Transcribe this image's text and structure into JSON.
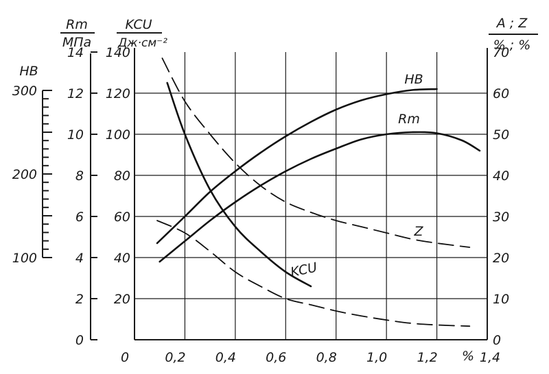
{
  "chart_data": {
    "type": "line",
    "x": {
      "unit": "%",
      "range": [
        0,
        1.4
      ],
      "ticks": [
        {
          "value": 0,
          "label": "0"
        },
        {
          "value": 0.2,
          "label": "0,2"
        },
        {
          "value": 0.4,
          "label": "0,4"
        },
        {
          "value": 0.6,
          "label": "0,6"
        },
        {
          "value": 0.8,
          "label": "0,8"
        },
        {
          "value": 1.0,
          "label": "1,0"
        },
        {
          "value": 1.2,
          "label": "1,2"
        },
        {
          "value": 1.4,
          "label": "1,4"
        }
      ]
    },
    "axes": {
      "hb": {
        "label": "HB",
        "range": [
          100,
          300
        ],
        "tick_labels": [
          {
            "value": 100,
            "label": "100"
          },
          {
            "value": 200,
            "label": "200"
          },
          {
            "value": 300,
            "label": "300"
          }
        ]
      },
      "rm": {
        "label_top": "Rm",
        "label_bottom": "МПа",
        "range": [
          0,
          14
        ],
        "tick_labels": [
          {
            "value": 0,
            "label": "0"
          },
          {
            "value": 2,
            "label": "2"
          },
          {
            "value": 4,
            "label": "4"
          },
          {
            "value": 6,
            "label": "6"
          },
          {
            "value": 8,
            "label": "8"
          },
          {
            "value": 10,
            "label": "10"
          },
          {
            "value": 12,
            "label": "12"
          },
          {
            "value": 14,
            "label": "14"
          }
        ]
      },
      "kcu": {
        "label_top": "KCU",
        "label_bottom": "Дж·см⁻²",
        "range": [
          0,
          140
        ],
        "tick_labels": [
          {
            "value": 20,
            "label": "20"
          },
          {
            "value": 40,
            "label": "40"
          },
          {
            "value": 60,
            "label": "60"
          },
          {
            "value": 80,
            "label": "80"
          },
          {
            "value": 100,
            "label": "100"
          },
          {
            "value": 120,
            "label": "120"
          },
          {
            "value": 140,
            "label": "140"
          }
        ]
      },
      "az": {
        "label_top": "A ; Z",
        "label_bottom": "% ; %",
        "range": [
          0,
          70
        ],
        "tick_labels": [
          {
            "value": 0,
            "label": "0"
          },
          {
            "value": 10,
            "label": "10"
          },
          {
            "value": 20,
            "label": "20"
          },
          {
            "value": 30,
            "label": "30"
          },
          {
            "value": 40,
            "label": "40"
          },
          {
            "value": 50,
            "label": "50"
          },
          {
            "value": 60,
            "label": "60"
          },
          {
            "value": 70,
            "label": "70"
          }
        ]
      }
    },
    "series": [
      {
        "name": "HB",
        "label": "HB",
        "axis": "rm",
        "style": "solid",
        "points": [
          [
            0.09,
            4.7
          ],
          [
            0.2,
            6.0
          ],
          [
            0.3,
            7.2
          ],
          [
            0.4,
            8.2
          ],
          [
            0.5,
            9.1
          ],
          [
            0.6,
            9.9
          ],
          [
            0.7,
            10.6
          ],
          [
            0.8,
            11.2
          ],
          [
            0.9,
            11.65
          ],
          [
            1.0,
            11.95
          ],
          [
            1.1,
            12.15
          ],
          [
            1.2,
            12.2
          ]
        ]
      },
      {
        "name": "Rm",
        "label": "Rm",
        "axis": "rm",
        "style": "solid",
        "points": [
          [
            0.1,
            3.8
          ],
          [
            0.2,
            4.8
          ],
          [
            0.3,
            5.8
          ],
          [
            0.4,
            6.7
          ],
          [
            0.5,
            7.5
          ],
          [
            0.6,
            8.2
          ],
          [
            0.7,
            8.8
          ],
          [
            0.8,
            9.3
          ],
          [
            0.9,
            9.75
          ],
          [
            1.0,
            10.0
          ],
          [
            1.1,
            10.1
          ],
          [
            1.2,
            10.05
          ],
          [
            1.3,
            9.7
          ],
          [
            1.37,
            9.2
          ]
        ]
      },
      {
        "name": "KCU",
        "label": "KCU",
        "axis": "kcu",
        "style": "solid",
        "points": [
          [
            0.13,
            125
          ],
          [
            0.2,
            100
          ],
          [
            0.3,
            73
          ],
          [
            0.4,
            55
          ],
          [
            0.5,
            43
          ],
          [
            0.6,
            33
          ],
          [
            0.7,
            26
          ]
        ]
      },
      {
        "name": "Z",
        "label": "Z",
        "axis": "az",
        "style": "dashed",
        "points": [
          [
            0.11,
            68.5
          ],
          [
            0.2,
            58
          ],
          [
            0.3,
            50
          ],
          [
            0.4,
            43
          ],
          [
            0.5,
            37.5
          ],
          [
            0.6,
            33.5
          ],
          [
            0.7,
            31
          ],
          [
            0.8,
            29
          ],
          [
            0.9,
            27.5
          ],
          [
            1.0,
            26
          ],
          [
            1.1,
            24.5
          ],
          [
            1.2,
            23.5
          ],
          [
            1.33,
            22.5
          ]
        ]
      },
      {
        "name": "A",
        "axis": "az",
        "style": "dashed",
        "points": [
          [
            0.09,
            29
          ],
          [
            0.2,
            26
          ],
          [
            0.3,
            21.5
          ],
          [
            0.4,
            16.5
          ],
          [
            0.5,
            13
          ],
          [
            0.6,
            10
          ],
          [
            0.7,
            8.5
          ],
          [
            0.8,
            7
          ],
          [
            0.9,
            5.8
          ],
          [
            1.0,
            4.8
          ],
          [
            1.1,
            4.0
          ],
          [
            1.2,
            3.6
          ],
          [
            1.33,
            3.3
          ]
        ]
      }
    ],
    "grid": true
  }
}
